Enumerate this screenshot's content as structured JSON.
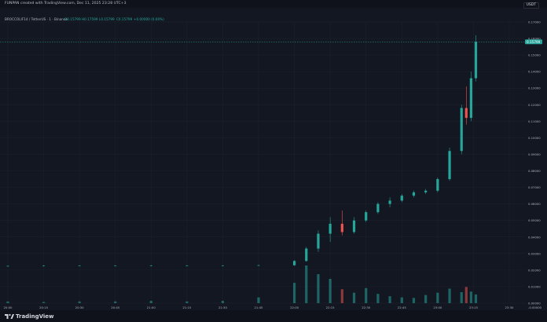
{
  "header": {
    "title": "FUNPAN created with TradingView.com, Dec 11, 2025 23:28 UTC+3",
    "unit": "USDT"
  },
  "legend": {
    "symbol": "BROCCOLIF14 / TetherUS · 1 · Binance",
    "o": "O0.15799",
    "h": "H0.17599",
    "l": "L0.15799",
    "c": "C0.15799",
    "chg": "+0.00000 (0.00%)"
  },
  "price_badge": "0.15799",
  "brand": {
    "name": "TradingView"
  },
  "colors": {
    "background": "#131722",
    "grid": "#1e222d",
    "up": "#26a69a",
    "down": "#ef5350",
    "text": "#b2b5be",
    "badge": "#26a69a"
  },
  "chart_data": {
    "type": "candlestick",
    "title": "BROCCOLIF14 / TetherUS · 1 · Binance",
    "xlabel": "",
    "ylabel": "",
    "ylim": [
      0,
      0.17
    ],
    "x_ticks": [
      "20:00",
      "20:15",
      "20:30",
      "20:45",
      "21:00",
      "21:15",
      "21:30",
      "21:45",
      "22:00",
      "22:15",
      "22:30",
      "22:45",
      "23:00",
      "23:15",
      "23:30"
    ],
    "y_ticks": [
      "0.17000",
      "0.16000",
      "0.15799",
      "0.15000",
      "0.14000",
      "0.13000",
      "0.12000",
      "0.11000",
      "0.10000",
      "0.09000",
      "0.08000",
      "0.07000",
      "0.06000",
      "0.05000",
      "0.04000",
      "0.03000",
      "0.02000",
      "0.01000",
      "0.00000",
      "-0.00000"
    ],
    "candles": [
      {
        "t": "20:00",
        "o": 0.0225,
        "h": 0.0228,
        "l": 0.0222,
        "c": 0.0225
      },
      {
        "t": "20:15",
        "o": 0.0225,
        "h": 0.0229,
        "l": 0.0222,
        "c": 0.0226
      },
      {
        "t": "20:30",
        "o": 0.0226,
        "h": 0.0229,
        "l": 0.0223,
        "c": 0.0226
      },
      {
        "t": "20:45",
        "o": 0.0226,
        "h": 0.0229,
        "l": 0.0223,
        "c": 0.0227
      },
      {
        "t": "21:00",
        "o": 0.0227,
        "h": 0.023,
        "l": 0.0224,
        "c": 0.0227
      },
      {
        "t": "21:15",
        "o": 0.0227,
        "h": 0.023,
        "l": 0.0224,
        "c": 0.0227
      },
      {
        "t": "21:30",
        "o": 0.0227,
        "h": 0.023,
        "l": 0.0224,
        "c": 0.0227
      },
      {
        "t": "21:45",
        "o": 0.0227,
        "h": 0.0232,
        "l": 0.0225,
        "c": 0.0229
      },
      {
        "t": "22:00",
        "o": 0.0229,
        "h": 0.026,
        "l": 0.0226,
        "c": 0.0255
      },
      {
        "t": "22:05",
        "o": 0.0255,
        "h": 0.034,
        "l": 0.025,
        "c": 0.033
      },
      {
        "t": "22:10",
        "o": 0.033,
        "h": 0.044,
        "l": 0.031,
        "c": 0.042
      },
      {
        "t": "22:15",
        "o": 0.042,
        "h": 0.052,
        "l": 0.037,
        "c": 0.048
      },
      {
        "t": "22:20",
        "o": 0.048,
        "h": 0.056,
        "l": 0.041,
        "c": 0.043
      },
      {
        "t": "22:25",
        "o": 0.043,
        "h": 0.052,
        "l": 0.042,
        "c": 0.05
      },
      {
        "t": "22:30",
        "o": 0.05,
        "h": 0.056,
        "l": 0.049,
        "c": 0.055
      },
      {
        "t": "22:35",
        "o": 0.055,
        "h": 0.061,
        "l": 0.054,
        "c": 0.06
      },
      {
        "t": "22:40",
        "o": 0.06,
        "h": 0.064,
        "l": 0.058,
        "c": 0.062
      },
      {
        "t": "22:45",
        "o": 0.062,
        "h": 0.066,
        "l": 0.061,
        "c": 0.065
      },
      {
        "t": "22:50",
        "o": 0.065,
        "h": 0.068,
        "l": 0.064,
        "c": 0.067
      },
      {
        "t": "22:55",
        "o": 0.067,
        "h": 0.069,
        "l": 0.066,
        "c": 0.068
      },
      {
        "t": "23:00",
        "o": 0.068,
        "h": 0.076,
        "l": 0.067,
        "c": 0.075
      },
      {
        "t": "23:05",
        "o": 0.075,
        "h": 0.094,
        "l": 0.074,
        "c": 0.092
      },
      {
        "t": "23:10",
        "o": 0.092,
        "h": 0.12,
        "l": 0.09,
        "c": 0.118
      },
      {
        "t": "23:12",
        "o": 0.118,
        "h": 0.131,
        "l": 0.108,
        "c": 0.112
      },
      {
        "t": "23:14",
        "o": 0.112,
        "h": 0.14,
        "l": 0.11,
        "c": 0.136
      },
      {
        "t": "23:16",
        "o": 0.136,
        "h": 0.162,
        "l": 0.134,
        "c": 0.158
      }
    ],
    "volume": [
      {
        "t": "20:00",
        "v": 0.3
      },
      {
        "t": "20:15",
        "v": 0.2
      },
      {
        "t": "20:30",
        "v": 0.3
      },
      {
        "t": "20:45",
        "v": 0.3
      },
      {
        "t": "21:00",
        "v": 0.4
      },
      {
        "t": "21:15",
        "v": 0.3
      },
      {
        "t": "21:30",
        "v": 0.4
      },
      {
        "t": "21:45",
        "v": 1.0
      },
      {
        "t": "22:00",
        "v": 3.5
      },
      {
        "t": "22:05",
        "v": 6.5
      },
      {
        "t": "22:10",
        "v": 5.0
      },
      {
        "t": "22:15",
        "v": 4.2
      },
      {
        "t": "22:20",
        "v": 2.4
      },
      {
        "t": "22:25",
        "v": 1.8
      },
      {
        "t": "22:30",
        "v": 2.6
      },
      {
        "t": "22:35",
        "v": 1.6
      },
      {
        "t": "22:40",
        "v": 1.2
      },
      {
        "t": "22:45",
        "v": 1.0
      },
      {
        "t": "22:50",
        "v": 0.9
      },
      {
        "t": "22:55",
        "v": 1.4
      },
      {
        "t": "23:00",
        "v": 1.8
      },
      {
        "t": "23:05",
        "v": 2.5
      },
      {
        "t": "23:10",
        "v": 1.9
      },
      {
        "t": "23:12",
        "v": 2.8
      },
      {
        "t": "23:14",
        "v": 2.0
      },
      {
        "t": "23:16",
        "v": 1.5
      }
    ]
  }
}
